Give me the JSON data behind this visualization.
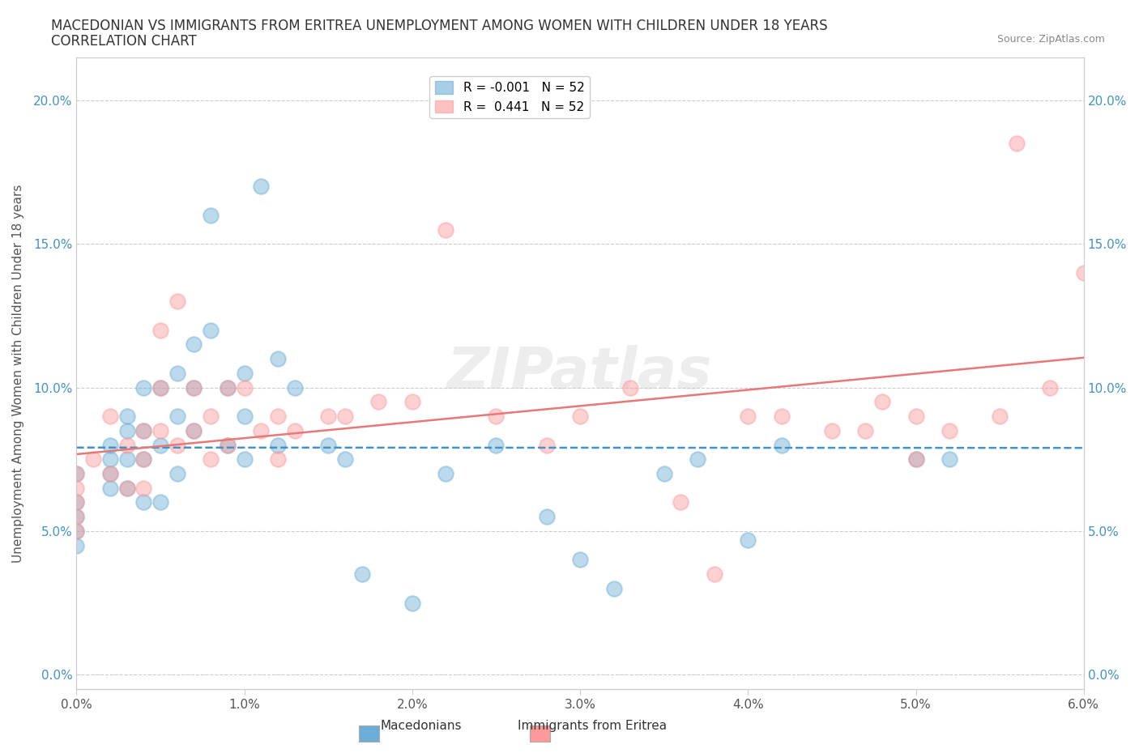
{
  "title_line1": "MACEDONIAN VS IMMIGRANTS FROM ERITREA UNEMPLOYMENT AMONG WOMEN WITH CHILDREN UNDER 18 YEARS",
  "title_line2": "CORRELATION CHART",
  "source_text": "Source: ZipAtlas.com",
  "xlabel_label": "",
  "ylabel_label": "Unemployment Among Women with Children Under 18 years",
  "xlim": [
    0.0,
    0.06
  ],
  "ylim": [
    -0.005,
    0.215
  ],
  "xticks": [
    0.0,
    0.01,
    0.02,
    0.03,
    0.04,
    0.05,
    0.06
  ],
  "yticks": [
    0.0,
    0.05,
    0.1,
    0.15,
    0.2
  ],
  "ytick_labels": [
    "0.0%",
    "5.0%",
    "10.0%",
    "15.0%",
    "20.0%"
  ],
  "xtick_labels": [
    "0.0%",
    "1.0%",
    "2.0%",
    "3.0%",
    "4.0%",
    "5.0%",
    "6.0%"
  ],
  "mac_color": "#6baed6",
  "eri_color": "#fb9a99",
  "mac_R": "-0.001",
  "mac_N": "52",
  "eri_R": "0.441",
  "eri_N": "52",
  "mac_scatter_x": [
    0.0,
    0.0,
    0.0,
    0.0,
    0.0,
    0.002,
    0.002,
    0.002,
    0.002,
    0.003,
    0.003,
    0.003,
    0.003,
    0.004,
    0.004,
    0.004,
    0.004,
    0.005,
    0.005,
    0.005,
    0.006,
    0.006,
    0.006,
    0.007,
    0.007,
    0.007,
    0.008,
    0.008,
    0.009,
    0.009,
    0.01,
    0.01,
    0.01,
    0.011,
    0.012,
    0.012,
    0.013,
    0.015,
    0.016,
    0.017,
    0.02,
    0.022,
    0.025,
    0.028,
    0.03,
    0.032,
    0.035,
    0.037,
    0.04,
    0.042,
    0.05,
    0.052
  ],
  "mac_scatter_y": [
    0.07,
    0.06,
    0.055,
    0.05,
    0.045,
    0.08,
    0.075,
    0.07,
    0.065,
    0.09,
    0.085,
    0.075,
    0.065,
    0.1,
    0.085,
    0.075,
    0.06,
    0.1,
    0.08,
    0.06,
    0.105,
    0.09,
    0.07,
    0.115,
    0.1,
    0.085,
    0.16,
    0.12,
    0.1,
    0.08,
    0.105,
    0.09,
    0.075,
    0.17,
    0.11,
    0.08,
    0.1,
    0.08,
    0.075,
    0.035,
    0.025,
    0.07,
    0.08,
    0.055,
    0.04,
    0.03,
    0.07,
    0.075,
    0.047,
    0.08,
    0.075,
    0.075
  ],
  "eri_scatter_x": [
    0.0,
    0.0,
    0.0,
    0.0,
    0.0,
    0.001,
    0.002,
    0.002,
    0.003,
    0.003,
    0.004,
    0.004,
    0.004,
    0.005,
    0.005,
    0.005,
    0.006,
    0.006,
    0.007,
    0.007,
    0.008,
    0.008,
    0.009,
    0.009,
    0.01,
    0.011,
    0.012,
    0.012,
    0.013,
    0.015,
    0.016,
    0.018,
    0.02,
    0.022,
    0.025,
    0.028,
    0.03,
    0.033,
    0.036,
    0.038,
    0.04,
    0.042,
    0.045,
    0.047,
    0.048,
    0.05,
    0.05,
    0.052,
    0.055,
    0.056,
    0.058,
    0.06
  ],
  "eri_scatter_y": [
    0.07,
    0.065,
    0.06,
    0.055,
    0.05,
    0.075,
    0.09,
    0.07,
    0.08,
    0.065,
    0.085,
    0.075,
    0.065,
    0.12,
    0.1,
    0.085,
    0.13,
    0.08,
    0.1,
    0.085,
    0.09,
    0.075,
    0.1,
    0.08,
    0.1,
    0.085,
    0.09,
    0.075,
    0.085,
    0.09,
    0.09,
    0.095,
    0.095,
    0.155,
    0.09,
    0.08,
    0.09,
    0.1,
    0.06,
    0.035,
    0.09,
    0.09,
    0.085,
    0.085,
    0.095,
    0.075,
    0.09,
    0.085,
    0.09,
    0.185,
    0.1,
    0.14
  ],
  "watermark": "ZIPatlas",
  "background_color": "#ffffff",
  "grid_color": "#cccccc"
}
